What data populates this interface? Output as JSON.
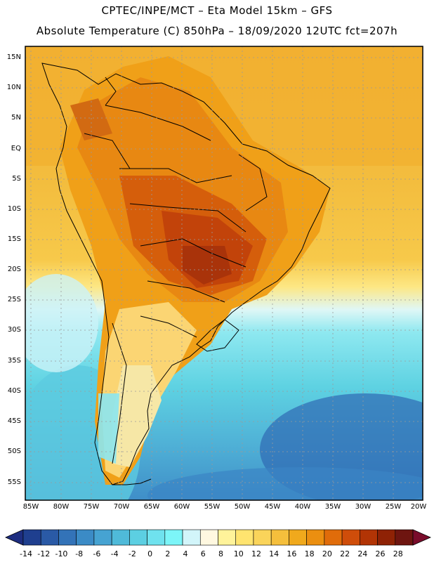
{
  "header": {
    "line1": "CPTEC/INPE/MCT –  Eta Model 15km – GFS",
    "line2": "Absolute Temperature (C) 850hPa – 18/09/2020 12UTC fct=207h"
  },
  "axes": {
    "lat_labels": [
      "15N",
      "10N",
      "5N",
      "EQ",
      "5S",
      "10S",
      "15S",
      "20S",
      "25S",
      "30S",
      "35S",
      "40S",
      "45S",
      "50S",
      "55S"
    ],
    "lon_labels": [
      "85W",
      "80W",
      "75W",
      "70W",
      "65W",
      "60W",
      "55W",
      "50W",
      "45W",
      "40W",
      "35W",
      "30W",
      "25W",
      "20W"
    ]
  },
  "colorbar": {
    "labels": [
      "-14",
      "-12",
      "-10",
      "-8",
      "-6",
      "-4",
      "-2",
      "0",
      "2",
      "4",
      "6",
      "8",
      "10",
      "12",
      "14",
      "16",
      "18",
      "20",
      "22",
      "24",
      "26",
      "28"
    ],
    "colors": [
      "#1f3f8f",
      "#2a5aa6",
      "#3373b8",
      "#3b8bc6",
      "#46a3d2",
      "#4fbad9",
      "#5ccfe2",
      "#6fe2ee",
      "#7cf5f8",
      "#d2f5fa",
      "#fff8e0",
      "#fff39a",
      "#ffe46f",
      "#fad45a",
      "#f5bf3c",
      "#f0a91c",
      "#eb8f10",
      "#e06c0a",
      "#cf4d0a",
      "#b23405",
      "#8f2205",
      "#6e1510"
    ],
    "under_color": "#1d2d80",
    "over_color": "#7a0c2b"
  }
}
